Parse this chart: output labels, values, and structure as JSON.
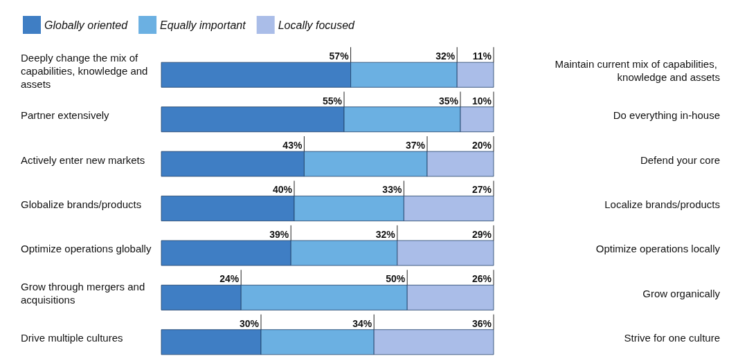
{
  "chart_data": {
    "type": "bar",
    "orientation": "horizontal",
    "stacked": true,
    "legend": "top left",
    "categories": [
      "Deeply change the mix of capabilities, knowledge and assets",
      "Partner extensively",
      "Actively enter new markets",
      "Globalize brands/products",
      "Optimize operations globally",
      "Grow through mergers and acquisitions",
      "Drive multiple cultures"
    ],
    "y2_categories": [
      "Maintain current mix of capabilities, knowledge and assets",
      "Do everything in-house",
      "Defend your core",
      "Localize brands/products",
      "Optimize operations locally",
      "Grow organically",
      "Strive for one culture"
    ],
    "series": [
      {
        "name": "Globally oriented",
        "color": "#3f7ec4",
        "values": [
          57,
          55,
          43,
          40,
          39,
          24,
          30
        ],
        "value_labels": [
          "57%",
          "55%",
          "43%",
          "40%",
          "39%",
          "24%",
          "30%"
        ]
      },
      {
        "name": "Equally important",
        "color": "#6bb0e2",
        "values": [
          32,
          35,
          37,
          33,
          32,
          50,
          34
        ],
        "value_labels": [
          "32%",
          "35%",
          "37%",
          "33%",
          "32%",
          "50%",
          "34%"
        ]
      },
      {
        "name": "Locally focused",
        "color": "#aabde8",
        "values": [
          11,
          10,
          20,
          27,
          29,
          26,
          36
        ],
        "value_labels": [
          "11%",
          "10%",
          "20%",
          "27%",
          "29%",
          "26%",
          "36%"
        ]
      }
    ]
  }
}
